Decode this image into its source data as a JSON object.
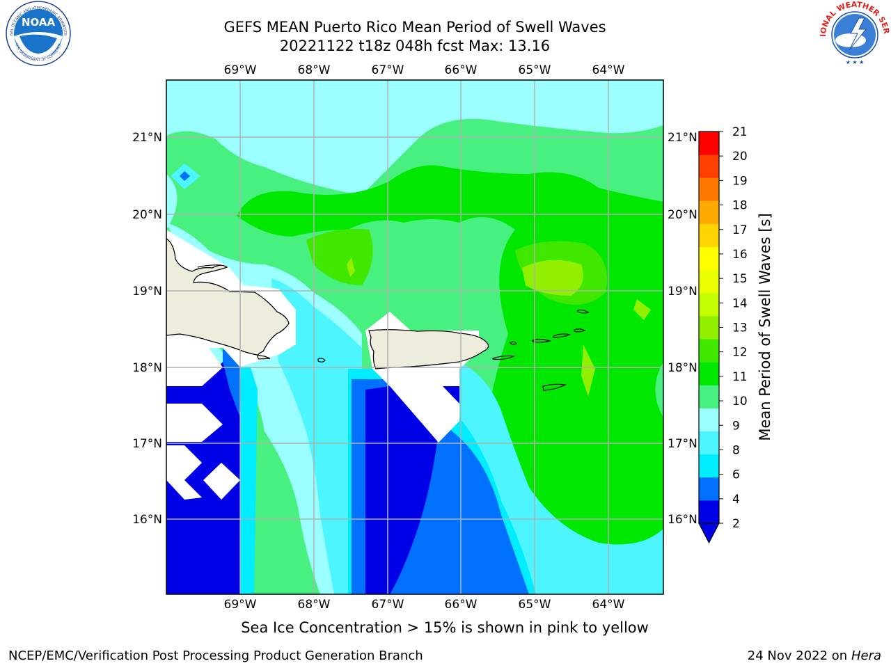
{
  "header": {
    "title_line1": "GEFS MEAN Puerto Rico Mean Period of Swell Waves",
    "title_line2": "20221122 t18z 048h fcst   Max: 13.16"
  },
  "logos": {
    "left": "NOAA",
    "left_ring_top": "NATIONAL OCEANIC AND ATMOSPHERIC ADMINISTRATION",
    "left_ring_bottom": "U.S. DEPARTMENT OF COMMERCE",
    "right_ring": "NATIONAL WEATHER SERVICE"
  },
  "map": {
    "lon_labels": [
      "69°W",
      "68°W",
      "67°W",
      "66°W",
      "65°W",
      "64°W"
    ],
    "lat_labels": [
      "21°N",
      "20°N",
      "19°N",
      "18°N",
      "17°N",
      "16°N"
    ],
    "gridlines": true
  },
  "colorbar": {
    "label": "Mean Period of Swell Waves [s]",
    "ticks": [
      "21",
      "20",
      "19",
      "18",
      "17",
      "16",
      "15",
      "14",
      "13",
      "12",
      "11",
      "10",
      "9",
      "8",
      "6",
      "4",
      "2"
    ],
    "colors": [
      "#0000e6",
      "#0070ff",
      "#00ecff",
      "#4cf5ff",
      "#9cffff",
      "#48f080",
      "#00e800",
      "#40e800",
      "#90f000",
      "#c4ff00",
      "#eaff00",
      "#ffff00",
      "#ffd400",
      "#ffaa00",
      "#ff7800",
      "#ff4000",
      "#ff0000"
    ],
    "extend_min": true
  },
  "caption": "Sea Ice Concentration > 15% is shown in pink to yellow",
  "footer": {
    "left": "NCEP/EMC/Verification Post Processing Product Generation Branch",
    "right_prefix": "24 Nov 2022 on",
    "right_host": "Hera"
  },
  "chart_data": {
    "type": "heatmap",
    "title": "GEFS MEAN Puerto Rico Mean Period of Swell Waves",
    "subtitle": "20221122 t18z 048h fcst   Max: 13.16",
    "variable": "Mean Period of Swell Waves [s]",
    "max": 13.16,
    "lon_ticks": [
      -69,
      -68,
      -67,
      -66,
      -65,
      -64
    ],
    "lat_ticks": [
      21,
      20,
      19,
      18,
      17,
      16
    ],
    "lon_range": [
      -70.0,
      -63.25
    ],
    "lat_range": [
      15.0,
      21.75
    ],
    "levels": [
      2,
      4,
      6,
      8,
      9,
      10,
      11,
      12,
      13,
      14,
      15,
      16,
      17,
      18,
      19,
      20,
      21
    ],
    "extend": "min"
  }
}
